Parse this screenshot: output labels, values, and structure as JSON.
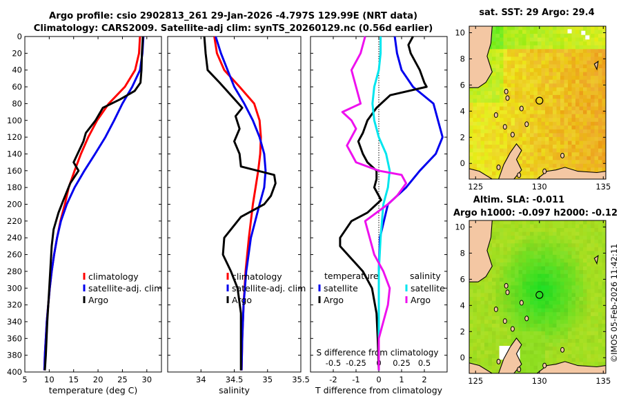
{
  "header": {
    "line1": "Argo profile: csio 2902813_261 29-Jan-2026 -4.797S 129.99E (NRT data)",
    "line2": "Climatology: CARS2009. Satellite-adj clim: synTS_20260129.nc (0.56d earlier)"
  },
  "depth_ticks": [
    0,
    20,
    40,
    60,
    80,
    100,
    120,
    140,
    160,
    180,
    200,
    220,
    240,
    260,
    280,
    300,
    320,
    340,
    360,
    380,
    400
  ],
  "colors": {
    "climatology": "#ff0000",
    "satellite": "#0000ee",
    "argo": "#000000",
    "sal_sat": "#00e5ee",
    "sal_argo": "#ee11ee",
    "land": "#f4c7a3"
  },
  "chart_data": [
    {
      "type": "line",
      "panel": "temperature",
      "xlabel": "temperature (deg C)",
      "ylabel": "depth",
      "xlim": [
        5,
        33
      ],
      "ylim": [
        400,
        0
      ],
      "xticks": [
        5,
        10,
        15,
        20,
        25,
        30
      ],
      "legend": [
        "climatology",
        "satellite-adj. clim",
        "Argo"
      ],
      "series": [
        {
          "name": "climatology",
          "depth": [
            0,
            20,
            40,
            60,
            80,
            100,
            120,
            140,
            160,
            180,
            200,
            220,
            240,
            260,
            280,
            300,
            320,
            340,
            360,
            380,
            398
          ],
          "values": [
            28.6,
            28.4,
            27.6,
            25.5,
            22.2,
            19.8,
            18.0,
            16.5,
            15.2,
            14.0,
            13.2,
            12.3,
            11.6,
            11.0,
            10.5,
            10.1,
            9.8,
            9.5,
            9.3,
            9.1,
            9.0
          ]
        },
        {
          "name": "satellite-adj. clim",
          "depth": [
            0,
            20,
            40,
            60,
            80,
            100,
            120,
            140,
            160,
            180,
            200,
            220,
            240,
            260,
            280,
            300,
            320,
            340,
            360,
            380,
            398
          ],
          "values": [
            29.3,
            29.1,
            28.6,
            27.0,
            25.0,
            23.3,
            21.5,
            19.4,
            17.2,
            15.2,
            13.6,
            12.4,
            11.6,
            11.0,
            10.5,
            10.1,
            9.8,
            9.5,
            9.3,
            9.1,
            9.0
          ]
        },
        {
          "name": "Argo",
          "depth": [
            0,
            20,
            40,
            55,
            65,
            75,
            85,
            100,
            115,
            125,
            140,
            150,
            160,
            175,
            195,
            210,
            230,
            250,
            280,
            310,
            340,
            380,
            398
          ],
          "values": [
            29.2,
            29.0,
            28.9,
            28.7,
            27.5,
            24.5,
            21.0,
            19.5,
            17.5,
            17.0,
            15.8,
            15.0,
            16.0,
            14.3,
            12.9,
            11.9,
            10.9,
            10.5,
            10.2,
            9.9,
            9.6,
            9.3,
            9.1
          ]
        }
      ]
    },
    {
      "type": "line",
      "panel": "salinity",
      "xlabel": "salinity",
      "xlim": [
        33.5,
        35.5
      ],
      "ylim": [
        400,
        0
      ],
      "xticks": [
        34,
        34.5,
        35,
        35.5
      ],
      "legend": [
        "climatology",
        "satellite-adj. clim",
        "Argo"
      ],
      "series": [
        {
          "name": "climatology",
          "depth": [
            0,
            20,
            40,
            60,
            80,
            100,
            120,
            140,
            160,
            180,
            200,
            240,
            280,
            320,
            360,
            398
          ],
          "values": [
            34.2,
            34.24,
            34.35,
            34.58,
            34.8,
            34.88,
            34.9,
            34.89,
            34.86,
            34.82,
            34.78,
            34.72,
            34.67,
            34.64,
            34.62,
            34.61
          ]
        },
        {
          "name": "satellite-adj. clim",
          "depth": [
            0,
            20,
            40,
            60,
            80,
            100,
            120,
            140,
            160,
            180,
            200,
            240,
            280,
            320,
            360,
            398
          ],
          "values": [
            34.22,
            34.3,
            34.4,
            34.5,
            34.65,
            34.78,
            34.88,
            34.95,
            34.97,
            34.95,
            34.88,
            34.75,
            34.68,
            34.64,
            34.62,
            34.61
          ]
        },
        {
          "name": "Argo",
          "depth": [
            0,
            20,
            40,
            55,
            70,
            85,
            95,
            110,
            125,
            140,
            155,
            160,
            165,
            175,
            190,
            200,
            215,
            240,
            260,
            280,
            300,
            330,
            360,
            398
          ],
          "values": [
            34.05,
            34.07,
            34.1,
            34.28,
            34.45,
            34.62,
            34.52,
            34.58,
            34.5,
            34.58,
            34.6,
            34.85,
            35.1,
            35.12,
            35.05,
            34.95,
            34.6,
            34.35,
            34.33,
            34.45,
            34.55,
            34.6,
            34.6,
            34.6
          ]
        }
      ]
    },
    {
      "type": "line",
      "panel": "difference",
      "xlabel": "T difference from climatology",
      "xlabel2": "S difference from climatology",
      "xlim": [
        -3,
        3
      ],
      "ylim": [
        400,
        0
      ],
      "xticks": [
        -2,
        -1,
        0,
        1,
        2
      ],
      "xticks2": [
        -0.5,
        -0.25,
        0,
        0.25,
        0.5
      ],
      "xtick_labels2": [
        "-0.5",
        "-0.25",
        "0",
        "0.25",
        "0.5"
      ],
      "legend_titles": [
        "temperature",
        "salinity"
      ],
      "legend": [
        "satellite",
        "Argo",
        "satellite",
        "Argo"
      ],
      "series": [
        {
          "name": "T satellite",
          "depth": [
            0,
            20,
            40,
            60,
            80,
            100,
            120,
            140,
            160,
            180,
            200,
            240,
            280,
            320,
            360,
            398
          ],
          "values": [
            0.7,
            0.8,
            1.0,
            1.5,
            2.4,
            2.6,
            2.8,
            2.5,
            1.8,
            1.2,
            0.4,
            0.05,
            0.0,
            0.0,
            0.0,
            0.0
          ]
        },
        {
          "name": "T Argo",
          "depth": [
            0,
            10,
            20,
            40,
            55,
            60,
            70,
            85,
            100,
            115,
            125,
            140,
            150,
            160,
            170,
            180,
            195,
            210,
            220,
            240,
            250,
            280,
            300,
            330,
            360,
            398
          ],
          "values": [
            1.5,
            1.3,
            1.4,
            1.8,
            2.0,
            2.1,
            0.5,
            -0.1,
            -0.5,
            -0.7,
            -0.9,
            -0.7,
            -0.5,
            -0.1,
            -0.1,
            -0.2,
            0.1,
            -0.5,
            -1.2,
            -1.7,
            -1.7,
            -0.7,
            -0.3,
            -0.1,
            -0.05,
            0.0
          ]
        },
        {
          "name": "S satellite",
          "depth": [
            0,
            20,
            40,
            60,
            80,
            100,
            120,
            140,
            160,
            180,
            200,
            240,
            280,
            320,
            360,
            398
          ],
          "values": [
            0.02,
            0.02,
            0.0,
            -0.05,
            -0.07,
            -0.05,
            0.0,
            0.08,
            0.12,
            0.1,
            0.05,
            0.02,
            0.0,
            0.0,
            0.0,
            0.0
          ]
        },
        {
          "name": "S Argo",
          "depth": [
            0,
            20,
            40,
            60,
            80,
            90,
            100,
            110,
            120,
            130,
            140,
            150,
            160,
            165,
            175,
            190,
            200,
            220,
            240,
            260,
            280,
            300,
            320,
            340,
            360,
            398
          ],
          "values": [
            -0.15,
            -0.2,
            -0.3,
            -0.25,
            -0.2,
            -0.4,
            -0.3,
            -0.25,
            -0.3,
            -0.35,
            -0.3,
            -0.25,
            0.0,
            0.25,
            0.3,
            0.2,
            0.1,
            -0.15,
            -0.1,
            -0.05,
            0.05,
            0.12,
            0.1,
            0.05,
            0.0,
            0.0
          ]
        }
      ]
    },
    {
      "type": "heatmap",
      "panel": "sst_map",
      "title": "sat. SST: 29 Argo: 29.4",
      "xlim": [
        124.5,
        135.2
      ],
      "ylim": [
        -1.2,
        10.5
      ],
      "xticks": [
        125,
        130,
        135
      ],
      "yticks": [
        0,
        2,
        4,
        6,
        8,
        10
      ],
      "argo_position": [
        130,
        4.8
      ]
    },
    {
      "type": "heatmap",
      "panel": "sla_map",
      "title": "Altim. SLA: -0.011",
      "subtitle": "Argo h1000: -0.097 h2000: -0.12",
      "xlim": [
        124.5,
        135.2
      ],
      "ylim": [
        -1.2,
        10.5
      ],
      "xticks": [
        125,
        130,
        135
      ],
      "yticks": [
        0,
        2,
        4,
        6,
        8,
        10
      ],
      "argo_position": [
        130,
        4.8
      ]
    }
  ],
  "watermark": "©IMOS 05-Feb-2026 11:42:11"
}
